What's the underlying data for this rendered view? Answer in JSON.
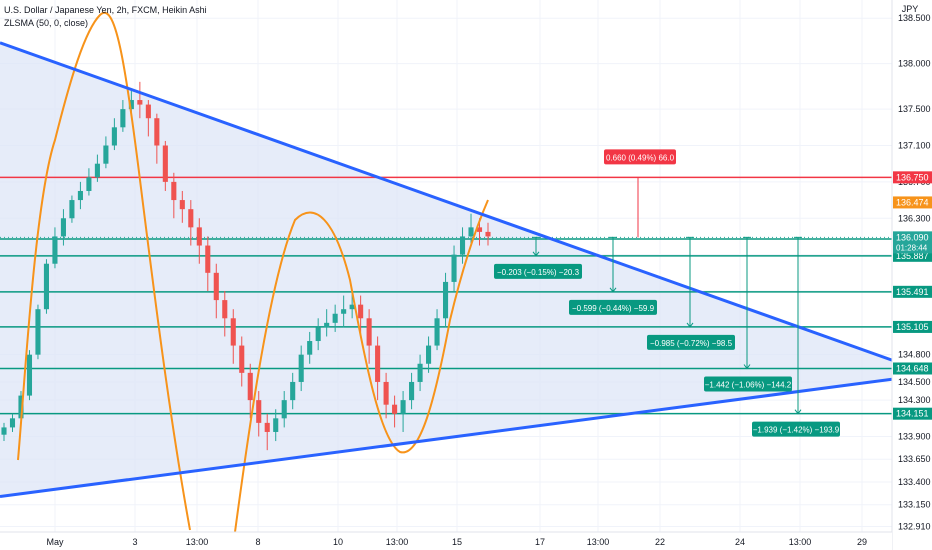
{
  "header": {
    "title": "U.S. Dollar / Japanese Yen, 2h, FXCM, Heikin Ashi",
    "indicator": "ZLSMA (50, 0, close)"
  },
  "colors": {
    "up": "#26a69a",
    "down": "#ef5350",
    "trendline": "#2962ff",
    "triangle_fill": "#dbe4f7",
    "zlsma": "#f7931a",
    "resistance": "#f23645",
    "support": "#089981",
    "grid": "#f0f3fa"
  },
  "chart_data": {
    "type": "candlestick",
    "currency": "JPY",
    "ylim": [
      132.85,
      138.7
    ],
    "price_ticks": [
      "138.500",
      "138.000",
      "137.500",
      "137.100",
      "136.700",
      "136.300",
      "135.900",
      "135.500",
      "135.100",
      "134.800",
      "134.500",
      "134.300",
      "133.900",
      "133.650",
      "133.400",
      "133.150",
      "132.910"
    ],
    "time_labels": [
      "May",
      "3",
      "13:00",
      "8",
      "10",
      "13:00",
      "15",
      "17",
      "13:00",
      "22",
      "24",
      "13:00",
      "29"
    ],
    "horizontal_levels": [
      {
        "price": 136.75,
        "label": "136.750",
        "color": "#f23645"
      },
      {
        "price": 136.072,
        "label": "136.072",
        "color": "#089981"
      },
      {
        "price": 135.887,
        "label": "135.887",
        "color": "#089981"
      },
      {
        "price": 135.491,
        "label": "135.491",
        "color": "#089981"
      },
      {
        "price": 135.105,
        "label": "135.105",
        "color": "#089981"
      },
      {
        "price": 134.648,
        "label": "134.648",
        "color": "#089981"
      },
      {
        "price": 134.151,
        "label": "134.151",
        "color": "#089981"
      }
    ],
    "axis_badges": [
      {
        "price": 136.474,
        "label": "136.474",
        "color": "#f7931a"
      },
      {
        "price": 136.09,
        "label": "136.090",
        "sub": "01:28:44",
        "color": "#26a69a"
      }
    ],
    "current_price": 136.09,
    "measurements": [
      {
        "text": "0.660 (0.49%) 66.0",
        "color": "#f23645",
        "to_price": 136.75
      },
      {
        "text": "−0.203 (−0.15%) −20.3",
        "color": "#089981",
        "to_price": 135.887
      },
      {
        "text": "−0.599 (−0.44%) −59.9",
        "color": "#089981",
        "to_price": 135.491
      },
      {
        "text": "−0.985 (−0.72%) −98.5",
        "color": "#089981",
        "to_price": 135.105
      },
      {
        "text": "−1.442 (−1.06%) −144.2",
        "color": "#089981",
        "to_price": 134.648
      },
      {
        "text": "−1.939 (−1.42%) −193.9",
        "color": "#089981",
        "to_price": 134.151
      }
    ],
    "trendlines": [
      {
        "name": "upper",
        "from": [
          0,
          138.23
        ],
        "to": [
          892,
          134.74
        ]
      },
      {
        "name": "lower",
        "from": [
          0,
          133.24
        ],
        "to": [
          892,
          134.53
        ]
      }
    ],
    "candles": [
      [
        133.92,
        134.0,
        134.05,
        133.85
      ],
      [
        134.0,
        134.1,
        134.15,
        133.95
      ],
      [
        134.1,
        134.35,
        134.4,
        134.05
      ],
      [
        134.35,
        134.8,
        134.85,
        134.3
      ],
      [
        134.8,
        135.3,
        135.35,
        134.75
      ],
      [
        135.3,
        135.8,
        135.85,
        135.25
      ],
      [
        135.8,
        136.1,
        136.2,
        135.75
      ],
      [
        136.1,
        136.3,
        136.4,
        136.0
      ],
      [
        136.3,
        136.5,
        136.55,
        136.25
      ],
      [
        136.5,
        136.6,
        136.7,
        136.4
      ],
      [
        136.6,
        136.75,
        136.85,
        136.55
      ],
      [
        136.75,
        136.9,
        137.0,
        136.7
      ],
      [
        136.9,
        137.1,
        137.2,
        136.85
      ],
      [
        137.1,
        137.3,
        137.4,
        137.05
      ],
      [
        137.3,
        137.5,
        137.6,
        137.25
      ],
      [
        137.5,
        137.6,
        137.7,
        137.45
      ],
      [
        137.6,
        137.55,
        137.8,
        137.4
      ],
      [
        137.55,
        137.4,
        137.6,
        137.2
      ],
      [
        137.4,
        137.1,
        137.45,
        136.9
      ],
      [
        137.1,
        136.7,
        137.15,
        136.6
      ],
      [
        136.7,
        136.5,
        136.8,
        136.3
      ],
      [
        136.5,
        136.4,
        136.6,
        136.25
      ],
      [
        136.4,
        136.2,
        136.5,
        136.0
      ],
      [
        136.2,
        136.0,
        136.3,
        135.8
      ],
      [
        136.0,
        135.7,
        136.1,
        135.5
      ],
      [
        135.7,
        135.4,
        135.8,
        135.2
      ],
      [
        135.4,
        135.2,
        135.5,
        135.0
      ],
      [
        135.2,
        134.9,
        135.3,
        134.7
      ],
      [
        134.9,
        134.6,
        135.0,
        134.45
      ],
      [
        134.6,
        134.3,
        134.7,
        134.1
      ],
      [
        134.3,
        134.05,
        134.4,
        133.9
      ],
      [
        134.05,
        133.95,
        134.15,
        133.75
      ],
      [
        133.95,
        134.1,
        134.2,
        133.85
      ],
      [
        134.1,
        134.3,
        134.4,
        134.0
      ],
      [
        134.3,
        134.5,
        134.6,
        134.2
      ],
      [
        134.5,
        134.8,
        134.9,
        134.4
      ],
      [
        134.8,
        134.95,
        135.05,
        134.7
      ],
      [
        134.95,
        135.1,
        135.2,
        134.85
      ],
      [
        135.1,
        135.15,
        135.3,
        135.0
      ],
      [
        135.15,
        135.25,
        135.35,
        135.05
      ],
      [
        135.25,
        135.3,
        135.45,
        135.1
      ],
      [
        135.3,
        135.35,
        135.5,
        135.2
      ],
      [
        135.35,
        135.2,
        135.45,
        135.0
      ],
      [
        135.2,
        134.9,
        135.3,
        134.7
      ],
      [
        134.9,
        134.5,
        135.0,
        134.3
      ],
      [
        134.5,
        134.25,
        134.6,
        134.1
      ],
      [
        134.25,
        134.15,
        134.35,
        134.0
      ],
      [
        134.15,
        134.3,
        134.4,
        133.95
      ],
      [
        134.3,
        134.5,
        134.6,
        134.2
      ],
      [
        134.5,
        134.7,
        134.8,
        134.4
      ],
      [
        134.7,
        134.9,
        135.0,
        134.6
      ],
      [
        134.9,
        135.2,
        135.3,
        134.85
      ],
      [
        135.2,
        135.6,
        135.7,
        135.1
      ],
      [
        135.6,
        135.9,
        136.0,
        135.5
      ],
      [
        135.9,
        136.1,
        136.2,
        135.8
      ],
      [
        136.1,
        136.2,
        136.35,
        136.0
      ],
      [
        136.2,
        136.15,
        136.3,
        136.0
      ],
      [
        136.15,
        136.1,
        136.25,
        136.0
      ]
    ]
  }
}
